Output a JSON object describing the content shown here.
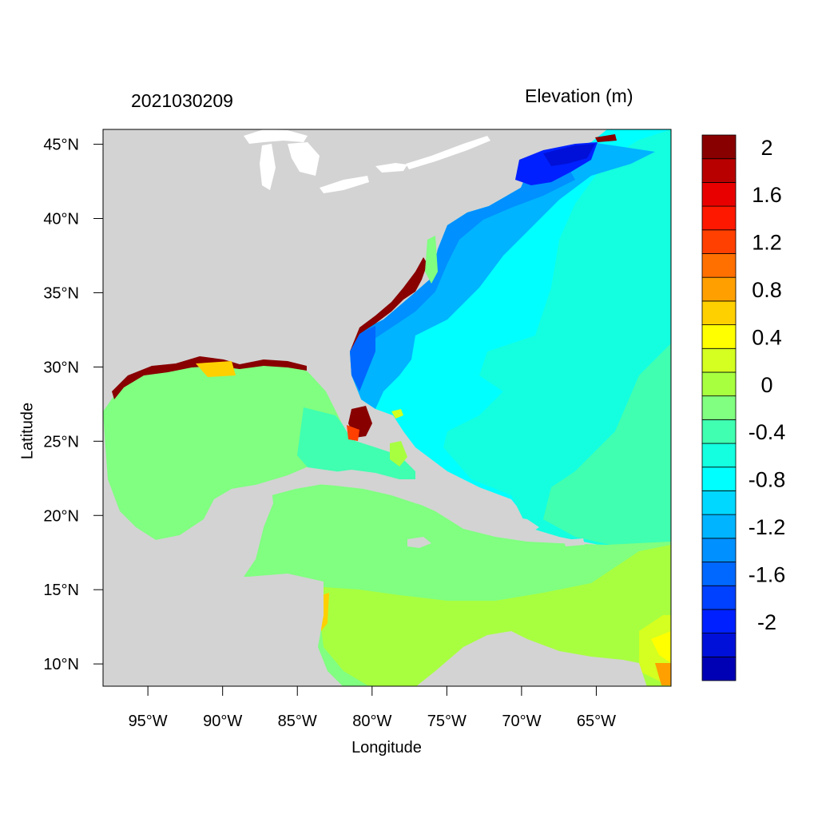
{
  "title": {
    "left": "2021030209",
    "right": "Elevation (m)"
  },
  "axes": {
    "xlabel": "Longitude",
    "ylabel": "Latitude",
    "lon_range": [
      -98,
      -60
    ],
    "lat_range": [
      8.5,
      46
    ],
    "lon_ticks": [
      {
        "value": -95,
        "label": "95°W"
      },
      {
        "value": -90,
        "label": "90°W"
      },
      {
        "value": -85,
        "label": "85°W"
      },
      {
        "value": -80,
        "label": "80°W"
      },
      {
        "value": -75,
        "label": "75°W"
      },
      {
        "value": -70,
        "label": "70°W"
      },
      {
        "value": -65,
        "label": "65°W"
      }
    ],
    "lat_ticks": [
      {
        "value": 45,
        "label": "45°N"
      },
      {
        "value": 40,
        "label": "40°N"
      },
      {
        "value": 35,
        "label": "35°N"
      },
      {
        "value": 30,
        "label": "30°N"
      },
      {
        "value": 25,
        "label": "25°N"
      },
      {
        "value": 20,
        "label": "20°N"
      },
      {
        "value": 15,
        "label": "15°N"
      },
      {
        "value": 10,
        "label": "10°N"
      }
    ]
  },
  "colorbar": {
    "colors": [
      "#0000b4",
      "#0010d8",
      "#0020ff",
      "#0040ff",
      "#0068ff",
      "#0090ff",
      "#00b4ff",
      "#00d8ff",
      "#00ffff",
      "#14ffe0",
      "#40ffb0",
      "#80ff80",
      "#a8ff40",
      "#d4ff20",
      "#ffff00",
      "#ffd000",
      "#ffa000",
      "#ff7000",
      "#ff4000",
      "#ff1800",
      "#e80000",
      "#b80000",
      "#880000"
    ],
    "labels": [
      {
        "value": -2,
        "label": "-2"
      },
      {
        "value": -1.6,
        "label": "-1.6"
      },
      {
        "value": -1.2,
        "label": "-1.2"
      },
      {
        "value": -0.8,
        "label": "-0.8"
      },
      {
        "value": -0.4,
        "label": "-0.4"
      },
      {
        "value": 0,
        "label": "0"
      },
      {
        "value": 0.4,
        "label": "0.4"
      },
      {
        "value": 0.8,
        "label": "0.8"
      },
      {
        "value": 1.2,
        "label": "1.2"
      },
      {
        "value": 1.6,
        "label": "1.6"
      },
      {
        "value": 2,
        "label": "2"
      }
    ]
  },
  "colors": {
    "land": "#d3d3d3",
    "lake": "#ffffff",
    "gulf": "#80ff80",
    "caribbean_south": "#a8ff40",
    "atlantic": "#00ffff",
    "atlantic_north": "#14ffe0",
    "shelf": "#00b4ff",
    "deep_low": "#0020ff",
    "surge": "#880000"
  }
}
